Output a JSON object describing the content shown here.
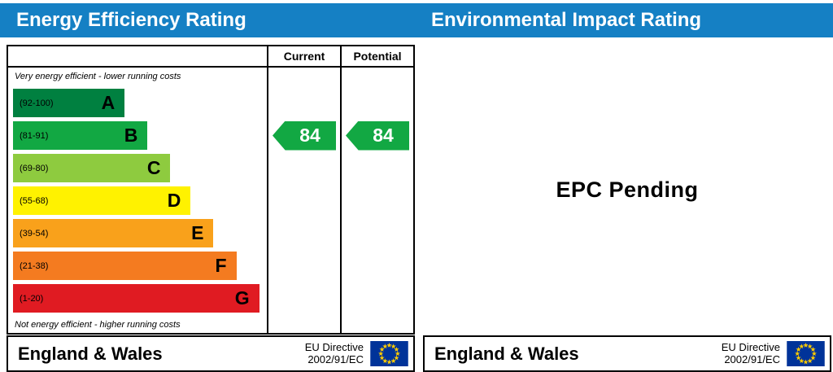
{
  "header": {
    "left_title": "Energy Efficiency Rating",
    "right_title": "Environmental Impact Rating",
    "bar_color": "#1580c4"
  },
  "chart_data": {
    "type": "bar",
    "title": "Energy Efficiency Rating",
    "column_headers": {
      "current": "Current",
      "potential": "Potential"
    },
    "top_note": "Very energy efficient - lower running costs",
    "bottom_note": "Not energy efficient - higher running costs",
    "bands": [
      {
        "letter": "A",
        "range_label": "(92-100)",
        "min": 92,
        "max": 100,
        "color": "#008040",
        "width_pct": 44
      },
      {
        "letter": "B",
        "range_label": "(81-91)",
        "min": 81,
        "max": 91,
        "color": "#12a843",
        "width_pct": 53
      },
      {
        "letter": "C",
        "range_label": "(69-80)",
        "min": 69,
        "max": 80,
        "color": "#8ecb3f",
        "width_pct": 62
      },
      {
        "letter": "D",
        "range_label": "(55-68)",
        "min": 55,
        "max": 68,
        "color": "#fff200",
        "width_pct": 70
      },
      {
        "letter": "E",
        "range_label": "(39-54)",
        "min": 39,
        "max": 54,
        "color": "#f9a11b",
        "width_pct": 79
      },
      {
        "letter": "F",
        "range_label": "(21-38)",
        "min": 21,
        "max": 38,
        "color": "#f47b20",
        "width_pct": 88
      },
      {
        "letter": "G",
        "range_label": "(1-20)",
        "min": 1,
        "max": 20,
        "color": "#e01b22",
        "width_pct": 97
      }
    ],
    "current": {
      "value": 84,
      "band": "B",
      "arrow_color": "#12a843"
    },
    "potential": {
      "value": 84,
      "band": "B",
      "arrow_color": "#12a843"
    }
  },
  "impact_panel": {
    "status_text": "EPC Pending"
  },
  "footer": {
    "region": "England & Wales",
    "directive_line1": "EU Directive",
    "directive_line2": "2002/91/EC"
  },
  "eu_flag": {
    "background": "#003399",
    "star": "#ffcc00"
  }
}
